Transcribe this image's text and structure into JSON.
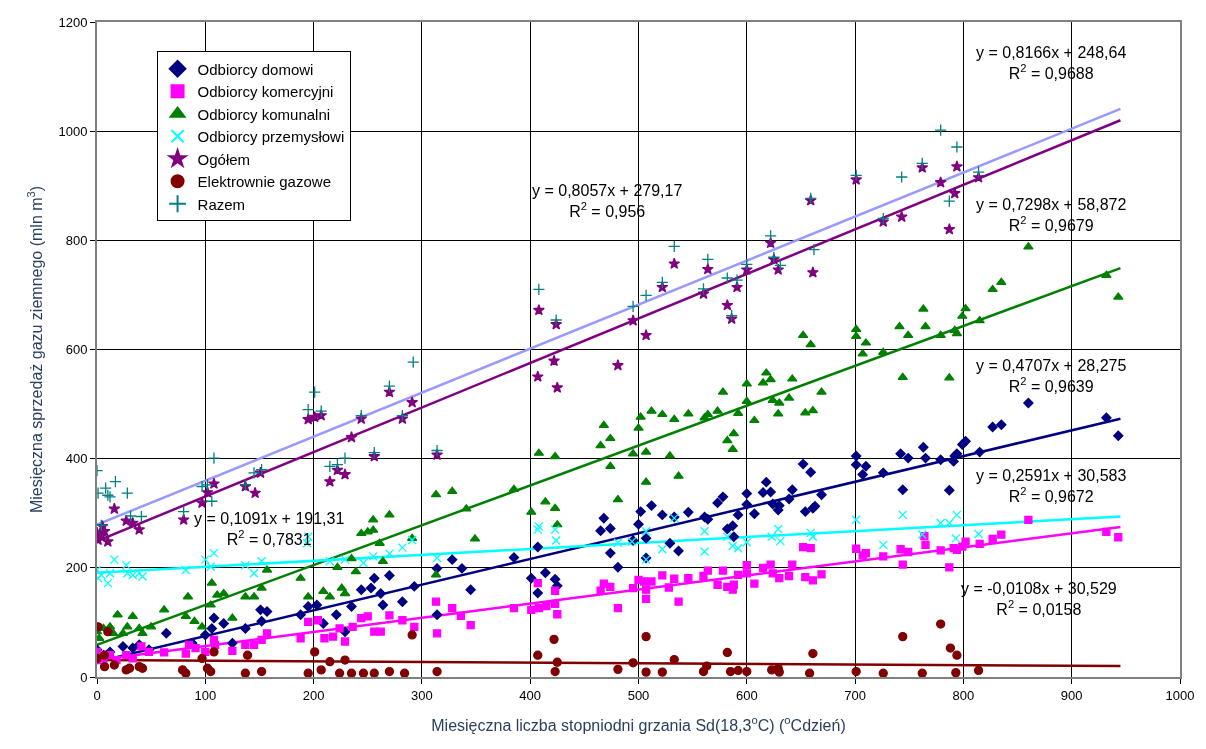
{
  "chart_data": {
    "type": "scatter",
    "xlabel": "Miesięczna liczba stopniodni grzania Sd(18,3$^{o}$C) ($^{o}$Cdzień)",
    "ylabel": "Miesięczna sprzedaż gazu ziemnego (mln m$^{3}$)",
    "xlim": [
      0,
      1000
    ],
    "ylim": [
      0,
      1200
    ],
    "xticks": [
      0,
      100,
      200,
      300,
      400,
      500,
      600,
      700,
      800,
      900,
      1000
    ],
    "yticks": [
      0,
      200,
      400,
      600,
      800,
      1000,
      1200
    ],
    "grid": true,
    "legend": "top left",
    "series": [
      {
        "name": "Odbiorcy domowi",
        "color": "#000080",
        "marker": "diamond",
        "x": [
          0,
          6,
          12,
          24,
          33,
          39,
          48,
          64,
          88,
          100,
          106,
          108,
          117,
          125,
          137,
          151,
          157,
          152,
          188,
          195,
          203,
          209,
          221,
          229,
          235,
          244,
          253,
          256,
          264,
          262,
          270,
          282,
          293,
          314,
          314,
          328,
          337,
          345,
          385,
          401,
          407,
          407,
          414,
          423,
          425,
          465,
          468,
          474,
          474,
          481,
          495,
          500,
          502,
          507,
          507,
          512,
          522,
          529,
          533,
          537,
          546,
          561,
          564,
          573,
          578,
          582,
          587,
          588,
          592,
          600,
          600,
          607,
          615,
          618,
          622,
          624,
          629,
          630,
          639,
          642,
          652,
          659,
          654,
          661,
          663,
          669,
          701,
          701,
          707,
          710,
          726,
          742,
          744,
          749,
          763,
          765,
          779,
          787,
          791,
          792,
          794,
          799,
          802,
          815,
          827,
          835,
          860,
          932,
          943
        ],
        "values": [
          50,
          40,
          46,
          56,
          53,
          59,
          50,
          80,
          62,
          77,
          89,
          108,
          98,
          62,
          89,
          123,
          120,
          102,
          114,
          129,
          132,
          98,
          114,
          83,
          129,
          160,
          163,
          181,
          132,
          153,
          186,
          138,
          166,
          114,
          199,
          215,
          199,
          160,
          219,
          181,
          154,
          238,
          191,
          179,
          167,
          268,
          291,
          272,
          227,
          201,
          250,
          280,
          303,
          254,
          218,
          314,
          297,
          245,
          293,
          231,
          302,
          293,
          289,
          319,
          330,
          271,
          277,
          257,
          297,
          336,
          316,
          299,
          338,
          357,
          339,
          317,
          306,
          314,
          326,
          343,
          390,
          375,
          303,
          309,
          313,
          334,
          405,
          389,
          371,
          386,
          374,
          409,
          343,
          401,
          421,
          401,
          398,
          342,
          395,
          405,
          409,
          426,
          432,
          412,
          458,
          462,
          502,
          475,
          442
        ]
      },
      {
        "name": "Odbiorcy komercyjni",
        "color": "#ff00ff",
        "marker": "square",
        "x": [
          0,
          0,
          6,
          12,
          18,
          27,
          33,
          41,
          48,
          62,
          82,
          85,
          91,
          100,
          108,
          109,
          125,
          137,
          145,
          152,
          157,
          188,
          195,
          204,
          210,
          218,
          224,
          229,
          236,
          244,
          250,
          256,
          262,
          270,
          282,
          293,
          313,
          314,
          328,
          336,
          345,
          385,
          401,
          407,
          408,
          415,
          423,
          423,
          425,
          465,
          468,
          474,
          481,
          495,
          500,
          505,
          507,
          507,
          512,
          522,
          528,
          533,
          537,
          546,
          560,
          564,
          573,
          578,
          582,
          587,
          588,
          592,
          600,
          600,
          607,
          615,
          622,
          624,
          630,
          639,
          642,
          652,
          659,
          654,
          661,
          669,
          701,
          707,
          710,
          726,
          742,
          744,
          749,
          764,
          765,
          779,
          787,
          791,
          794,
          799,
          802,
          815,
          827,
          835,
          860,
          932,
          943
        ],
        "values": [
          46,
          31,
          34,
          40,
          31,
          40,
          34,
          56,
          46,
          45,
          43,
          59,
          53,
          46,
          68,
          59,
          48,
          59,
          59,
          68,
          80,
          71,
          101,
          104,
          71,
          74,
          89,
          65,
          92,
          108,
          111,
          83,
          83,
          113,
          104,
          92,
          138,
          80,
          126,
          112,
          95,
          126,
          123,
          172,
          126,
          130,
          158,
          134,
          115,
          158,
          171,
          165,
          126,
          163,
          178,
          175,
          160,
          143,
          175,
          186,
          164,
          180,
          138,
          181,
          185,
          195,
          169,
          195,
          165,
          160,
          169,
          187,
          205,
          190,
          171,
          200,
          206,
          190,
          181,
          185,
          206,
          238,
          236,
          183,
          177,
          188,
          235,
          223,
          227,
          221,
          234,
          206,
          229,
          258,
          242,
          232,
          201,
          236,
          233,
          239,
          248,
          244,
          253,
          261,
          288,
          266,
          256
        ]
      },
      {
        "name": "Odbiorcy komunalni",
        "color": "#008000",
        "marker": "triangle",
        "x": [
          0,
          2,
          6,
          12,
          15,
          19,
          24,
          28,
          33,
          39,
          42,
          50,
          62,
          82,
          84,
          90,
          97,
          105,
          106,
          111,
          117,
          125,
          137,
          145,
          152,
          157,
          188,
          195,
          209,
          215,
          222,
          226,
          229,
          235,
          239,
          244,
          250,
          255,
          255,
          261,
          264,
          270,
          291,
          313,
          313,
          328,
          341,
          349,
          385,
          401,
          408,
          414,
          423,
          423,
          425,
          465,
          468,
          474,
          474,
          481,
          495,
          500,
          502,
          507,
          507,
          512,
          522,
          529,
          533,
          537,
          546,
          561,
          564,
          573,
          578,
          582,
          587,
          588,
          592,
          600,
          600,
          607,
          615,
          618,
          622,
          624,
          629,
          630,
          639,
          642,
          652,
          659,
          654,
          661,
          669,
          701,
          701,
          707,
          710,
          726,
          741,
          744,
          749,
          763,
          765,
          779,
          787,
          792,
          794,
          799,
          802,
          815,
          827,
          835,
          860,
          932,
          943
        ],
        "values": [
          83,
          71,
          89,
          92,
          80,
          114,
          80,
          92,
          111,
          89,
          80,
          92,
          123,
          111,
          147,
          102,
          92,
          132,
          172,
          150,
          153,
          108,
          147,
          147,
          163,
          196,
          181,
          147,
          157,
          147,
          201,
          163,
          153,
          217,
          193,
          263,
          266,
          269,
          288,
          245,
          212,
          297,
          254,
          187,
          334,
          340,
          308,
          253,
          344,
          302,
          410,
          321,
          309,
          404,
          279,
          424,
          461,
          437,
          386,
          325,
          409,
          456,
          476,
          412,
          357,
          487,
          481,
          405,
          472,
          368,
          482,
          475,
          481,
          487,
          522,
          433,
          417,
          446,
          483,
          537,
          505,
          470,
          539,
          557,
          545,
          507,
          482,
          502,
          511,
          546,
          626,
          609,
          484,
          488,
          522,
          637,
          624,
          592,
          612,
          595,
          642,
          549,
          626,
          674,
          642,
          626,
          548,
          635,
          629,
          661,
          675,
          653,
          710,
          723,
          788,
          736,
          696
        ]
      },
      {
        "name": "Odbiorcy przemysłowi",
        "color": "#00ffff",
        "marker": "x",
        "x": [
          0,
          1,
          4,
          7,
          10,
          12,
          16,
          27,
          28,
          33,
          39,
          42,
          82,
          100,
          108,
          105,
          137,
          145,
          152,
          194,
          195,
          215,
          229,
          246,
          255,
          270,
          282,
          291,
          314,
          407,
          408,
          423,
          424,
          481,
          494,
          507,
          507,
          522,
          533,
          561,
          561,
          582,
          587,
          592,
          600,
          623,
          629,
          631,
          659,
          661,
          701,
          726,
          744,
          762,
          779,
          787,
          794,
          793,
          814
        ],
        "values": [
          196,
          181,
          187,
          null,
          172,
          190,
          215,
          205,
          190,
          187,
          190,
          184,
          196,
          215,
          227,
          202,
          205,
          190,
          212,
          245,
          257,
          212,
          215,
          209,
          221,
          226,
          237,
          251,
          218,
          270,
          276,
          270,
          250,
          246,
          248,
          267,
          215,
          234,
          291,
          267,
          230,
          257,
          240,
          236,
          247,
          257,
          271,
          249,
          264,
          257,
          288,
          242,
          297,
          261,
          282,
          282,
          297,
          254,
          262
        ]
      },
      {
        "name": "Ogółem",
        "color": "#800080",
        "marker": "star",
        "x": [
          0,
          1,
          4,
          7,
          10,
          5,
          16,
          27,
          33,
          39,
          80,
          97,
          102,
          108,
          137,
          146,
          151,
          195,
          201,
          207,
          215,
          222,
          229,
          235,
          244,
          256,
          270,
          282,
          291,
          314,
          407,
          422,
          425,
          481,
          408,
          424,
          495,
          507,
          522,
          533,
          560,
          564,
          582,
          586,
          591,
          600,
          622,
          625,
          629,
          659,
          661,
          701,
          726,
          743,
          762,
          779,
          787,
          792,
          794,
          814
        ],
        "values": [
          264,
          251,
          258,
          267,
          248,
          276,
          308,
          286,
          282,
          270,
          288,
          319,
          338,
          354,
          349,
          337,
          374,
          472,
          476,
          479,
          358,
          379,
          371,
          439,
          473,
          404,
          522,
          473,
          503,
          407,
          550,
          579,
          530,
          571,
          672,
          646,
          653,
          626,
          714,
          757,
          702,
          747,
          681,
          656,
          714,
          746,
          795,
          765,
          746,
          873,
          741,
          911,
          834,
          843,
          933,
          906,
          820,
          886,
          935,
          915
        ]
      },
      {
        "name": "Elektrownie gazowe",
        "color": "#800000",
        "marker": "circle",
        "x": [
          0,
          1,
          10,
          7,
          16,
          27,
          30,
          39,
          42,
          7,
          79,
          82,
          97,
          102,
          105,
          108,
          139,
          137,
          152,
          195,
          201,
          207,
          215,
          224,
          229,
          235,
          246,
          256,
          270,
          284,
          291,
          314,
          407,
          422,
          425,
          423,
          481,
          495,
          507,
          507,
          522,
          533,
          560,
          563,
          582,
          585,
          592,
          600,
          623,
          629,
          630,
          658,
          661,
          701,
          726,
          744,
          762,
          779,
          788,
          794,
          793,
          814
        ],
        "values": [
          34,
          92,
          83,
          19,
          22,
          13,
          16,
          19,
          16,
          40,
          13,
          7,
          34,
          16,
          10,
          46,
          40,
          7,
          10,
          7,
          46,
          13,
          28,
          7,
          31,
          7,
          7,
          7,
          10,
          7,
          77,
          10,
          40,
          69,
          27,
          10,
          14,
          26,
          74,
          9,
          9,
          32,
          10,
          20,
          45,
          10,
          12,
          10,
          13,
          16,
          9,
          7,
          43,
          10,
          7,
          74,
          7,
          97,
          53,
          40,
          8,
          12
        ]
      },
      {
        "name": "Razem",
        "color": "#008080",
        "marker": "cross",
        "x": [
          0,
          1,
          4,
          8,
          10,
          12,
          17,
          28,
          31,
          41,
          80,
          97,
          102,
          106,
          108,
          137,
          145,
          152,
          195,
          201,
          207,
          215,
          222,
          229,
          244,
          256,
          270,
          282,
          292,
          314,
          408,
          424,
          495,
          507,
          522,
          533,
          560,
          564,
          582,
          586,
          591,
          600,
          622,
          625,
          631,
          659,
          662,
          701,
          726,
          743,
          762,
          779,
          787,
          794,
          814
        ],
        "values": [
          378,
          337,
          278,
          346,
          333,
          330,
          358,
          337,
          295,
          294,
          303,
          349,
          352,
          322,
          401,
          352,
          374,
          380,
          490,
          522,
          487,
          386,
          389,
          401,
          479,
          411,
          533,
          479,
          577,
          415,
          710,
          654,
          679,
          699,
          723,
          789,
          711,
          765,
          731,
          662,
          727,
          756,
          808,
          769,
          754,
          877,
          783,
          919,
          840,
          916,
          941,
          1002,
          872,
          971,
          925
        ]
      },
      {
        "type": "line",
        "color": "#000080",
        "x": [
          0,
          945
        ],
        "values": [
          28,
          473
        ]
      },
      {
        "type": "line",
        "color": "#ff00ff",
        "x": [
          0,
          945
        ],
        "values": [
          31,
          275
        ]
      },
      {
        "type": "line",
        "color": "#008000",
        "x": [
          0,
          945
        ],
        "values": [
          59,
          749
        ]
      },
      {
        "type": "line",
        "color": "#00ffff",
        "x": [
          0,
          945
        ],
        "values": [
          191,
          294
        ]
      },
      {
        "type": "line",
        "color": "#800080",
        "x": [
          0,
          945
        ],
        "values": [
          249,
          1020
        ]
      },
      {
        "type": "line",
        "color": "#800000",
        "x": [
          0,
          945
        ],
        "values": [
          31,
          20
        ]
      },
      {
        "type": "line",
        "color": "#9999ff",
        "x": [
          0,
          945
        ],
        "values": [
          279,
          1041
        ]
      }
    ],
    "annotations": [
      "y = 0,8166x + 248,64\nR$^{2}$ = 0,9688",
      "y = 0,8057x + 279,17\nR$^{2}$ = 0,956",
      "y = 0,7298x + 58,872\nR$^{2}$ = 0,9679",
      "y = 0,4707x + 28,275\nR$^{2}$ = 0,9639",
      "y = 0,2591x + 30,583\nR$^{2}$ = 0,9672",
      "y = -0,0108x + 30,529\nR$^{2}$ = 0,0158",
      "y = 0,1091x + 191,31\nR$^{2}$ = 0,7831"
    ]
  }
}
